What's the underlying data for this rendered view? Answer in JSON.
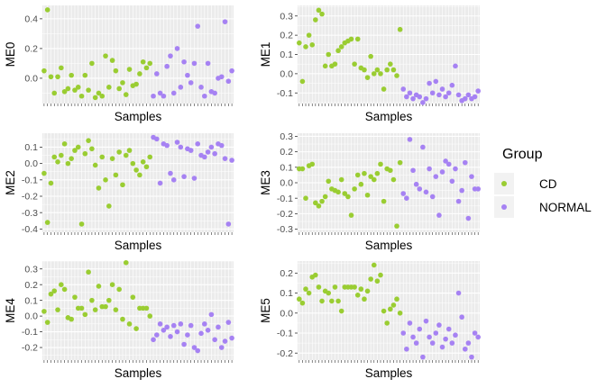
{
  "colors": {
    "CD": "#9ACD32",
    "NORMAL": "#A682F3",
    "panel_bg": "#EBEBEB",
    "grid": "#FFFFFF"
  },
  "legend": {
    "title": "Group",
    "items": [
      {
        "label": "CD",
        "color": "#9ACD32"
      },
      {
        "label": "NORMAL",
        "color": "#A682F3"
      }
    ]
  },
  "chart_data": [
    {
      "type": "scatter",
      "ylabel": "ME0",
      "xlabel": "Samples",
      "n_samples": 56,
      "ylim": [
        -0.17,
        0.49
      ],
      "yticks": [
        "0.4",
        "0.2",
        "0.0"
      ],
      "ytick_values": [
        0.4,
        0.2,
        0.0
      ],
      "series": [
        {
          "name": "CD",
          "color": "#9ACD32",
          "x": [
            1,
            2,
            3,
            4,
            5,
            6,
            7,
            8,
            9,
            10,
            11,
            12,
            13,
            14,
            15,
            16,
            17,
            18,
            19,
            20,
            21,
            22,
            23,
            24,
            25,
            26,
            27,
            28,
            29,
            30,
            31,
            32
          ],
          "y": [
            0.05,
            0.46,
            0.01,
            -0.1,
            0.01,
            0.07,
            -0.09,
            -0.07,
            0.02,
            -0.08,
            -0.06,
            -0.12,
            0.02,
            -0.08,
            0.1,
            -0.13,
            -0.1,
            -0.12,
            0.15,
            -0.06,
            0.12,
            0.05,
            -0.07,
            -0.03,
            -0.11,
            0.06,
            -0.05,
            -0.04,
            0.03,
            0.11,
            0.07,
            0.1
          ]
        },
        {
          "name": "NORMAL",
          "color": "#A682F3",
          "x": [
            33,
            34,
            35,
            36,
            37,
            38,
            39,
            40,
            41,
            42,
            43,
            44,
            45,
            46,
            47,
            48,
            49,
            50,
            51,
            52,
            53,
            54,
            55,
            56
          ],
          "y": [
            -0.12,
            0.03,
            -0.1,
            -0.12,
            0.08,
            0.15,
            -0.1,
            0.2,
            -0.06,
            0.11,
            0.02,
            -0.03,
            0.1,
            0.35,
            -0.06,
            -0.12,
            0.1,
            -0.09,
            -0.1,
            0,
            0.01,
            0.38,
            -0.02,
            0.05
          ]
        }
      ]
    },
    {
      "type": "scatter",
      "ylabel": "ME1",
      "xlabel": "Samples",
      "n_samples": 56,
      "ylim": [
        -0.155,
        0.355
      ],
      "yticks": [
        "0.3",
        "0.2",
        "0.1",
        "0.0",
        "-0.1"
      ],
      "ytick_values": [
        0.3,
        0.2,
        0.1,
        0.0,
        -0.1
      ],
      "series": [
        {
          "name": "CD",
          "color": "#9ACD32",
          "x": [
            1,
            2,
            3,
            4,
            5,
            6,
            7,
            8,
            9,
            10,
            11,
            12,
            13,
            14,
            15,
            16,
            17,
            18,
            19,
            20,
            21,
            22,
            23,
            24,
            25,
            26,
            27,
            28,
            29,
            30,
            31,
            32
          ],
          "y": [
            0.16,
            -0.04,
            0.14,
            0.2,
            0.15,
            0.28,
            0.33,
            0.31,
            0.04,
            0.1,
            0.04,
            0.05,
            0.12,
            0.14,
            0.16,
            0.17,
            0.18,
            0.05,
            0.18,
            0.03,
            0.02,
            -0.02,
            0.09,
            0,
            0.02,
            0,
            -0.08,
            0.02,
            0.05,
            0.02,
            -0.01,
            0.23
          ]
        },
        {
          "name": "NORMAL",
          "color": "#A682F3",
          "x": [
            33,
            34,
            35,
            36,
            37,
            38,
            39,
            40,
            41,
            42,
            43,
            44,
            45,
            46,
            47,
            48,
            49,
            50,
            51,
            52,
            53,
            54,
            55,
            56
          ],
          "y": [
            -0.08,
            -0.12,
            -0.1,
            -0.13,
            -0.11,
            -0.12,
            -0.15,
            -0.13,
            -0.05,
            -0.1,
            -0.04,
            -0.11,
            -0.08,
            -0.12,
            -0.1,
            -0.06,
            0.04,
            -0.11,
            -0.14,
            -0.13,
            -0.11,
            -0.13,
            -0.12,
            -0.09
          ]
        }
      ]
    },
    {
      "type": "scatter",
      "ylabel": "ME2",
      "xlabel": "Samples",
      "n_samples": 56,
      "ylim": [
        -0.42,
        0.185
      ],
      "yticks": [
        "0.1",
        "0.0",
        "-0.1",
        "-0.2",
        "-0.3",
        "-0.4"
      ],
      "ytick_values": [
        0.1,
        0.0,
        -0.1,
        -0.2,
        -0.3,
        -0.4
      ],
      "series": [
        {
          "name": "CD",
          "color": "#9ACD32",
          "x": [
            1,
            2,
            3,
            4,
            5,
            6,
            7,
            8,
            9,
            10,
            11,
            12,
            13,
            14,
            15,
            16,
            17,
            18,
            19,
            20,
            21,
            22,
            23,
            24,
            25,
            26,
            27,
            28,
            29,
            30,
            31,
            32
          ],
          "y": [
            -0.06,
            -0.36,
            -0.12,
            0.04,
            0.01,
            0.05,
            0.12,
            0,
            0.03,
            0.08,
            0.1,
            -0.37,
            0.06,
            0.14,
            0.09,
            -0.01,
            -0.15,
            0.04,
            -0.1,
            -0.26,
            0.03,
            -0.07,
            0.07,
            -0.13,
            0.05,
            0.08,
            0,
            -0.04,
            -0.07,
            0.01,
            -0.02,
            0.04
          ]
        },
        {
          "name": "NORMAL",
          "color": "#A682F3",
          "x": [
            33,
            34,
            35,
            36,
            37,
            38,
            39,
            40,
            41,
            42,
            43,
            44,
            45,
            46,
            47,
            48,
            49,
            50,
            51,
            52,
            53,
            54,
            55,
            56
          ],
          "y": [
            0.16,
            0.15,
            -0.12,
            0.12,
            0.11,
            -0.06,
            -0.1,
            0.13,
            0.1,
            -0.08,
            0.09,
            0.08,
            -0.09,
            0.12,
            0.05,
            0.04,
            0.07,
            0.1,
            0.06,
            0.12,
            0.11,
            0.03,
            -0.37,
            0.02
          ]
        }
      ]
    },
    {
      "type": "scatter",
      "ylabel": "ME3",
      "xlabel": "Samples",
      "n_samples": 56,
      "ylim": [
        -0.32,
        0.32
      ],
      "yticks": [
        "0.3",
        "0.2",
        "0.1",
        "0.0",
        "-0.1",
        "-0.2",
        "-0.3"
      ],
      "ytick_values": [
        0.3,
        0.2,
        0.1,
        0.0,
        -0.1,
        -0.2,
        -0.3
      ],
      "series": [
        {
          "name": "CD",
          "color": "#9ACD32",
          "x": [
            1,
            2,
            3,
            4,
            5,
            6,
            7,
            8,
            9,
            10,
            11,
            12,
            13,
            14,
            15,
            16,
            17,
            18,
            19,
            20,
            21,
            22,
            23,
            24,
            25,
            26,
            27,
            28,
            29,
            30,
            31,
            32
          ],
          "y": [
            0.09,
            0.09,
            -0.1,
            0.11,
            0.12,
            -0.13,
            -0.15,
            -0.12,
            -0.09,
            0.01,
            -0.04,
            -0.05,
            -0.06,
            0.02,
            -0.07,
            -0.09,
            -0.21,
            -0.04,
            0.05,
            -0.01,
            0.06,
            -0.08,
            0.04,
            0.02,
            0.06,
            0.12,
            -0.12,
            0.09,
            0.08,
            0.02,
            -0.28,
            0.13
          ]
        },
        {
          "name": "NORMAL",
          "color": "#A682F3",
          "x": [
            33,
            34,
            35,
            36,
            37,
            38,
            39,
            40,
            41,
            42,
            43,
            44,
            45,
            46,
            47,
            48,
            49,
            50,
            51,
            52,
            53,
            54,
            55,
            56
          ],
          "y": [
            -0.07,
            -0.1,
            0.28,
            0.08,
            -0.01,
            -0.04,
            0.23,
            -0.06,
            0.09,
            -0.09,
            0.04,
            -0.21,
            0.07,
            0.14,
            0.12,
            0.01,
            0.09,
            -0.12,
            -0.05,
            0.13,
            -0.23,
            0.04,
            -0.04,
            -0.04
          ]
        }
      ]
    },
    {
      "type": "scatter",
      "ylabel": "ME4",
      "xlabel": "Samples",
      "n_samples": 56,
      "ylim": [
        -0.28,
        0.35
      ],
      "yticks": [
        "0.3",
        "0.2",
        "0.1",
        "0.0",
        "-0.1",
        "-0.2"
      ],
      "ytick_values": [
        0.3,
        0.2,
        0.1,
        0.0,
        -0.1,
        -0.2
      ],
      "series": [
        {
          "name": "CD",
          "color": "#9ACD32",
          "x": [
            1,
            2,
            3,
            4,
            5,
            6,
            7,
            8,
            9,
            10,
            11,
            12,
            13,
            14,
            15,
            16,
            17,
            18,
            19,
            20,
            21,
            22,
            23,
            24,
            25,
            26,
            27,
            28,
            29,
            30,
            31,
            32
          ],
          "y": [
            0.03,
            -0.04,
            0.14,
            0.16,
            0.04,
            0.2,
            0.17,
            -0.01,
            -0.02,
            0.12,
            0.05,
            0.05,
            0.01,
            0.28,
            0.1,
            0.04,
            0.19,
            0.06,
            0.06,
            0.1,
            0.2,
            0.04,
            0.17,
            -0.02,
            0.34,
            -0.05,
            0.12,
            -0.08,
            0.05,
            0.05,
            0.05,
            0.0
          ]
        },
        {
          "name": "NORMAL",
          "color": "#A682F3",
          "x": [
            33,
            34,
            35,
            36,
            37,
            38,
            39,
            40,
            41,
            42,
            43,
            44,
            45,
            46,
            47,
            48,
            49,
            50,
            51,
            52,
            53,
            54,
            55,
            56
          ],
          "y": [
            -0.15,
            -0.12,
            -0.05,
            -0.09,
            -0.07,
            -0.13,
            -0.06,
            -0.1,
            -0.05,
            -0.18,
            -0.12,
            -0.06,
            -0.2,
            -0.22,
            -0.11,
            -0.05,
            -0.09,
            0.01,
            -0.15,
            -0.07,
            -0.2,
            -0.16,
            -0.04,
            -0.14
          ]
        }
      ]
    },
    {
      "type": "scatter",
      "ylabel": "ME5",
      "xlabel": "Samples",
      "n_samples": 56,
      "ylim": [
        -0.235,
        0.26
      ],
      "yticks": [
        "0.2",
        "0.1",
        "0.0",
        "-0.1",
        "-0.2"
      ],
      "ytick_values": [
        0.2,
        0.1,
        0.0,
        -0.1,
        -0.2
      ],
      "series": [
        {
          "name": "CD",
          "color": "#9ACD32",
          "x": [
            1,
            2,
            3,
            4,
            5,
            6,
            7,
            8,
            9,
            10,
            11,
            12,
            13,
            14,
            15,
            16,
            17,
            18,
            19,
            20,
            21,
            22,
            23,
            24,
            25,
            26,
            27,
            28,
            29,
            30,
            31,
            32
          ],
          "y": [
            0.07,
            0.05,
            0.12,
            0.1,
            0.18,
            0.19,
            0.13,
            0.06,
            0.11,
            0.1,
            0.06,
            0.13,
            0.06,
            0.01,
            0.13,
            0.13,
            0.13,
            0.13,
            0.09,
            0.12,
            0.07,
            0.11,
            0.17,
            0.24,
            0.16,
            0.19,
            0.01,
            -0.05,
            0.02,
            0.04,
            0.07,
            0.0
          ]
        },
        {
          "name": "NORMAL",
          "color": "#A682F3",
          "x": [
            33,
            34,
            35,
            36,
            37,
            38,
            39,
            40,
            41,
            42,
            43,
            44,
            45,
            46,
            47,
            48,
            49,
            50,
            51,
            52,
            53,
            54,
            55,
            56
          ],
          "y": [
            -0.1,
            -0.18,
            -0.05,
            -0.12,
            -0.15,
            -0.08,
            -0.22,
            -0.04,
            -0.12,
            -0.15,
            -0.1,
            -0.06,
            -0.17,
            -0.13,
            -0.08,
            -0.15,
            -0.11,
            0.1,
            -0.02,
            -0.18,
            -0.15,
            -0.22,
            -0.1,
            -0.12
          ]
        }
      ]
    }
  ]
}
